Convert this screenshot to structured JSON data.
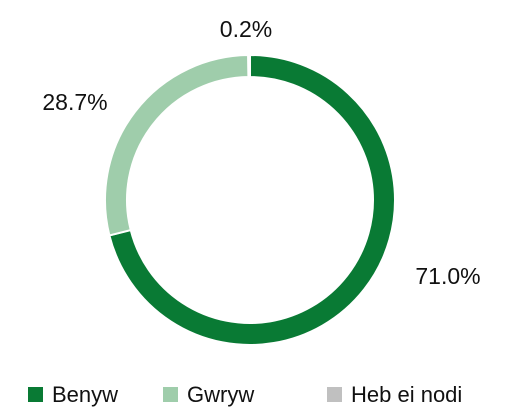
{
  "chart_data": {
    "type": "donut",
    "categories": [
      "Benyw",
      "Gwryw",
      "Heb ei nodi"
    ],
    "series": [
      {
        "name": "Benyw",
        "color": "#097a34"
      },
      {
        "name": "Gwryw",
        "color": "#9fcdab"
      },
      {
        "name": "Heb ei nodi",
        "color": "#c0c0c0"
      }
    ],
    "values": [
      71.0,
      28.7,
      0.2
    ],
    "value_labels": [
      "71.0%",
      "28.7%",
      "0.2%"
    ],
    "legend": "bottom"
  }
}
